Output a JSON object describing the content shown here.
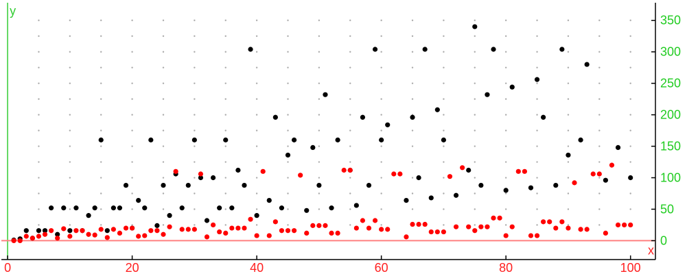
{
  "chart_data": {
    "type": "scatter",
    "title": "",
    "xlabel": "x",
    "ylabel": "y",
    "xlim": [
      -1,
      104
    ],
    "ylim": [
      -30,
      378
    ],
    "grid": true,
    "x_ticks": [
      0,
      20,
      40,
      60,
      80,
      100
    ],
    "y_ticks": [
      0,
      50,
      100,
      150,
      200,
      250,
      300,
      350
    ],
    "x_tick_labels": [
      "0",
      "20",
      "40",
      "60",
      "80",
      "100"
    ],
    "y_tick_labels": [
      "0",
      "50",
      "100",
      "150",
      "200",
      "250",
      "300",
      "350"
    ],
    "colors": {
      "x_axis": "#ff8080",
      "y_axis": "#33cc33",
      "x_tick_text": "#ff2020",
      "y_tick_text": "#22cc22",
      "frame": "#000000",
      "grid_dot": "#aaaaaa"
    },
    "series": [
      {
        "color": "#000000",
        "points": [
          [
            1,
            1
          ],
          [
            2,
            3
          ],
          [
            3,
            16
          ],
          [
            4,
            4
          ],
          [
            5,
            16
          ],
          [
            6,
            16
          ],
          [
            7,
            52
          ],
          [
            8,
            10
          ],
          [
            9,
            52
          ],
          [
            10,
            16
          ],
          [
            11,
            52
          ],
          [
            12,
            16
          ],
          [
            13,
            40
          ],
          [
            14,
            52
          ],
          [
            15,
            160
          ],
          [
            16,
            16
          ],
          [
            17,
            52
          ],
          [
            18,
            52
          ],
          [
            19,
            88
          ],
          [
            20,
            20
          ],
          [
            21,
            64
          ],
          [
            22,
            52
          ],
          [
            23,
            160
          ],
          [
            24,
            24
          ],
          [
            25,
            88
          ],
          [
            26,
            40
          ],
          [
            27,
            106
          ],
          [
            28,
            52
          ],
          [
            29,
            88
          ],
          [
            30,
            160
          ],
          [
            31,
            100
          ],
          [
            32,
            32
          ],
          [
            33,
            100
          ],
          [
            34,
            52
          ],
          [
            35,
            160
          ],
          [
            36,
            52
          ],
          [
            37,
            112
          ],
          [
            38,
            88
          ],
          [
            39,
            304
          ],
          [
            40,
            40
          ],
          [
            42,
            64
          ],
          [
            43,
            196
          ],
          [
            44,
            52
          ],
          [
            45,
            136
          ],
          [
            46,
            160
          ],
          [
            48,
            48
          ],
          [
            49,
            148
          ],
          [
            50,
            88
          ],
          [
            51,
            232
          ],
          [
            52,
            52
          ],
          [
            53,
            160
          ],
          [
            55,
            112
          ],
          [
            56,
            56
          ],
          [
            57,
            196
          ],
          [
            58,
            88
          ],
          [
            59,
            304
          ],
          [
            60,
            160
          ],
          [
            61,
            184
          ],
          [
            64,
            64
          ],
          [
            65,
            196
          ],
          [
            66,
            100
          ],
          [
            67,
            304
          ],
          [
            68,
            68
          ],
          [
            69,
            208
          ],
          [
            70,
            160
          ],
          [
            72,
            72
          ],
          [
            74,
            112
          ],
          [
            75,
            340
          ],
          [
            76,
            88
          ],
          [
            77,
            232
          ],
          [
            78,
            304
          ],
          [
            80,
            80
          ],
          [
            81,
            244
          ],
          [
            84,
            84
          ],
          [
            85,
            256
          ],
          [
            86,
            196
          ],
          [
            88,
            88
          ],
          [
            89,
            304
          ],
          [
            90,
            136
          ],
          [
            92,
            160
          ],
          [
            93,
            280
          ],
          [
            96,
            96
          ],
          [
            98,
            148
          ],
          [
            100,
            100
          ]
        ]
      },
      {
        "color": "#ff0000",
        "points": [
          [
            1,
            0
          ],
          [
            2,
            0
          ],
          [
            3,
            7
          ],
          [
            4,
            4
          ],
          [
            5,
            7
          ],
          [
            6,
            10
          ],
          [
            7,
            16
          ],
          [
            8,
            4
          ],
          [
            9,
            19
          ],
          [
            10,
            7
          ],
          [
            11,
            16
          ],
          [
            12,
            16
          ],
          [
            13,
            10
          ],
          [
            14,
            9
          ],
          [
            15,
            18
          ],
          [
            16,
            5
          ],
          [
            17,
            18
          ],
          [
            18,
            12
          ],
          [
            19,
            20
          ],
          [
            20,
            20
          ],
          [
            21,
            7
          ],
          [
            22,
            8
          ],
          [
            23,
            16
          ],
          [
            24,
            16
          ],
          [
            25,
            10
          ],
          [
            26,
            22
          ],
          [
            27,
            110
          ],
          [
            28,
            18
          ],
          [
            29,
            18
          ],
          [
            30,
            18
          ],
          [
            31,
            106
          ],
          [
            32,
            6
          ],
          [
            33,
            25
          ],
          [
            34,
            14
          ],
          [
            35,
            12
          ],
          [
            36,
            20
          ],
          [
            37,
            20
          ],
          [
            38,
            20
          ],
          [
            39,
            34
          ],
          [
            40,
            8
          ],
          [
            41,
            110
          ],
          [
            42,
            8
          ],
          [
            43,
            30
          ],
          [
            44,
            16
          ],
          [
            45,
            16
          ],
          [
            46,
            16
          ],
          [
            47,
            104
          ],
          [
            48,
            12
          ],
          [
            49,
            24
          ],
          [
            50,
            24
          ],
          [
            51,
            24
          ],
          [
            52,
            12
          ],
          [
            53,
            12
          ],
          [
            54,
            112
          ],
          [
            55,
            112
          ],
          [
            56,
            20
          ],
          [
            57,
            32
          ],
          [
            58,
            20
          ],
          [
            59,
            32
          ],
          [
            60,
            18
          ],
          [
            61,
            18
          ],
          [
            62,
            106
          ],
          [
            63,
            106
          ],
          [
            64,
            6
          ],
          [
            65,
            26
          ],
          [
            66,
            26
          ],
          [
            67,
            26
          ],
          [
            68,
            14
          ],
          [
            69,
            14
          ],
          [
            70,
            14
          ],
          [
            71,
            102
          ],
          [
            72,
            22
          ],
          [
            73,
            116
          ],
          [
            74,
            22
          ],
          [
            75,
            16
          ],
          [
            76,
            22
          ],
          [
            77,
            22
          ],
          [
            78,
            36
          ],
          [
            79,
            36
          ],
          [
            80,
            8
          ],
          [
            81,
            22
          ],
          [
            82,
            110
          ],
          [
            83,
            110
          ],
          [
            84,
            8
          ],
          [
            85,
            8
          ],
          [
            86,
            30
          ],
          [
            87,
            30
          ],
          [
            88,
            20
          ],
          [
            89,
            30
          ],
          [
            90,
            20
          ],
          [
            91,
            92
          ],
          [
            92,
            18
          ],
          [
            93,
            18
          ],
          [
            94,
            106
          ],
          [
            95,
            106
          ],
          [
            96,
            12
          ],
          [
            97,
            120
          ],
          [
            98,
            25
          ],
          [
            99,
            25
          ],
          [
            100,
            25
          ]
        ]
      }
    ]
  }
}
